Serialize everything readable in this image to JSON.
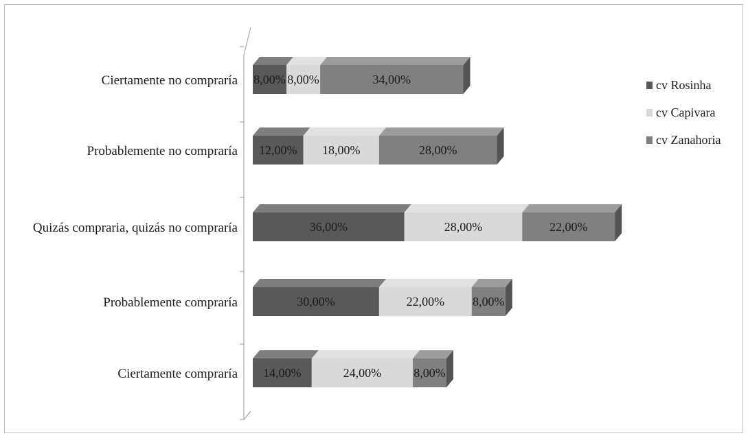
{
  "chart_data": {
    "type": "bar",
    "orientation": "horizontal",
    "stacked": true,
    "three_d": true,
    "categories": [
      "Ciertamente no compraría",
      "Probablemente no compraría",
      "Quizás compraria, quizás no compraría",
      "Probablemente compraría",
      "Ciertamente compraría"
    ],
    "series": [
      {
        "name": "cv Rosinha",
        "values": [
          8,
          12,
          36,
          30,
          14
        ],
        "labels": [
          "8,00%",
          "12,00%",
          "36,00%",
          "30,00%",
          "14,00%"
        ],
        "color": "#595959"
      },
      {
        "name": "cv Capivara",
        "values": [
          8,
          18,
          28,
          22,
          24
        ],
        "labels": [
          "8,00%",
          "18,00%",
          "28,00%",
          "22,00%",
          "24,00%"
        ],
        "color": "#d9d9d9"
      },
      {
        "name": "cv Zanahoria",
        "values": [
          34,
          28,
          22,
          8,
          8
        ],
        "labels": [
          "34,00%",
          "28,00%",
          "22,00%",
          "8,00%",
          "8,00%"
        ],
        "color": "#808080"
      }
    ],
    "xlim": [
      0,
      100
    ],
    "grid": false,
    "legend_position": "right",
    "title": "",
    "xlabel": "",
    "ylabel": ""
  }
}
